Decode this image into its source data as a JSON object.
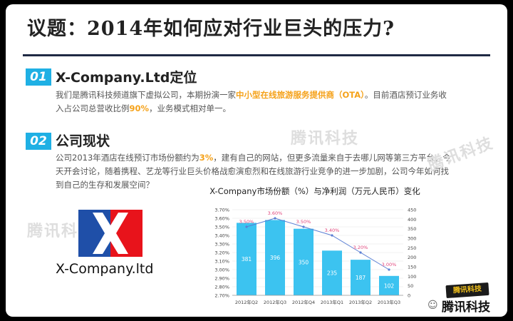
{
  "title": "议题：2014年如何应对行业巨头的压力?",
  "sections": [
    {
      "num": "01",
      "heading": "X-Company.Ltd定位",
      "text_parts": [
        "我们是腾讯科技频道旗下虚拟公司，本期扮演一家",
        "中小型在线旅游服务提供商（OTA）",
        "。目前酒店预订业务收",
        "入占公司总营收比例",
        "90%",
        "，业务模式相对单一。"
      ]
    },
    {
      "num": "02",
      "heading": "公司现状",
      "text_parts": [
        "公司2013年酒店在线预订市场份额约为",
        "3%",
        "，建有自己的网站，但更多流量来自于去哪儿网等第三方平台。今",
        "天开会讨论，随着携程、艺龙等行业巨头价格战愈演愈烈和在线旅游行业竞争的进一步加剧，公司今年如何找",
        "到自己的生存和发展空间？"
      ]
    }
  ],
  "logo": {
    "caption": "X-Company.ltd",
    "colors": {
      "blue": "#1f4fa8",
      "red": "#e8131b"
    }
  },
  "watermark": "腾讯科技",
  "corner": {
    "badge": "腾讯科技",
    "brand": "腾讯科技",
    "icon": "wechat-icon"
  },
  "chart_data": {
    "type": "bar+line",
    "title": "X-Company市场份额（%）与净利润（万元人民币）变化",
    "categories": [
      "2012年Q2",
      "2012年Q3",
      "2012年Q4",
      "2013年Q1",
      "2013年Q2",
      "2013年Q3"
    ],
    "series": [
      {
        "axis": "right",
        "kind": "bar",
        "values": [
          381,
          396,
          350,
          235,
          187,
          102
        ],
        "labels": [
          "381",
          "396",
          "350",
          "235",
          "187",
          "102"
        ],
        "color": "#3cc3f0"
      },
      {
        "axis": "left",
        "kind": "line",
        "values": [
          3.5,
          3.6,
          3.5,
          3.4,
          3.2,
          3.0
        ],
        "labels": [
          "3.50%",
          "3.60%",
          "3.50%",
          "3.40%",
          "3.20%",
          "3.00%"
        ],
        "color": "#5b7fd4",
        "label_color": "#e0457b"
      }
    ],
    "y_left": {
      "min": 2.7,
      "max": 3.7,
      "ticks": [
        "2.70%",
        "2.80%",
        "2.90%",
        "3.00%",
        "3.10%",
        "3.20%",
        "3.30%",
        "3.40%",
        "3.50%",
        "3.60%",
        "3.70%"
      ]
    },
    "y_right": {
      "min": 0,
      "max": 450,
      "ticks": [
        "0",
        "50",
        "100",
        "150",
        "200",
        "250",
        "300",
        "350",
        "400",
        "450"
      ]
    },
    "grid": true
  }
}
